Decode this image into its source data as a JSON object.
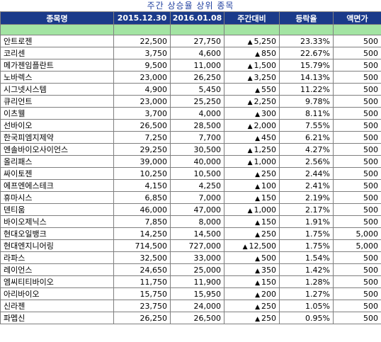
{
  "title": "주간 상승율 상위 종목",
  "headers": [
    "종목명",
    "2015.12.30",
    "2016.01.08",
    "주간대비",
    "등락율",
    "액면가"
  ],
  "up_icon": "triangle-up",
  "rows": [
    {
      "name": "안트로젠",
      "p1": "22,500",
      "p2": "27,750",
      "chg": "5,250",
      "rate": "23.33%",
      "par": "500"
    },
    {
      "name": "코리센",
      "p1": "3,750",
      "p2": "4,600",
      "chg": "850",
      "rate": "22.67%",
      "par": "500"
    },
    {
      "name": "메가젠임플란트",
      "p1": "9,500",
      "p2": "11,000",
      "chg": "1,500",
      "rate": "15.79%",
      "par": "500"
    },
    {
      "name": "노바렉스",
      "p1": "23,000",
      "p2": "26,250",
      "chg": "3,250",
      "rate": "14.13%",
      "par": "500"
    },
    {
      "name": "시그넷시스템",
      "p1": "4,900",
      "p2": "5,450",
      "chg": "550",
      "rate": "11.22%",
      "par": "500"
    },
    {
      "name": "큐리언트",
      "p1": "23,000",
      "p2": "25,250",
      "chg": "2,250",
      "rate": "9.78%",
      "par": "500"
    },
    {
      "name": "이츠웰",
      "p1": "3,700",
      "p2": "4,000",
      "chg": "300",
      "rate": "8.11%",
      "par": "500"
    },
    {
      "name": "선바이오",
      "p1": "26,500",
      "p2": "28,500",
      "chg": "2,000",
      "rate": "7.55%",
      "par": "500"
    },
    {
      "name": "한국피엠지제약",
      "p1": "7,250",
      "p2": "7,700",
      "chg": "450",
      "rate": "6.21%",
      "par": "500"
    },
    {
      "name": "엔솔바이오사이언스",
      "p1": "29,250",
      "p2": "30,500",
      "chg": "1,250",
      "rate": "4.27%",
      "par": "500"
    },
    {
      "name": "올리패스",
      "p1": "39,000",
      "p2": "40,000",
      "chg": "1,000",
      "rate": "2.56%",
      "par": "500"
    },
    {
      "name": "싸이토젠",
      "p1": "10,250",
      "p2": "10,500",
      "chg": "250",
      "rate": "2.44%",
      "par": "500"
    },
    {
      "name": "에프엔에스테크",
      "p1": "4,150",
      "p2": "4,250",
      "chg": "100",
      "rate": "2.41%",
      "par": "500"
    },
    {
      "name": "휴마시스",
      "p1": "6,850",
      "p2": "7,000",
      "chg": "150",
      "rate": "2.19%",
      "par": "500"
    },
    {
      "name": "덴티움",
      "p1": "46,000",
      "p2": "47,000",
      "chg": "1,000",
      "rate": "2.17%",
      "par": "500"
    },
    {
      "name": "바이오제닉스",
      "p1": "7,850",
      "p2": "8,000",
      "chg": "150",
      "rate": "1.91%",
      "par": "500"
    },
    {
      "name": "현대오일뱅크",
      "p1": "14,250",
      "p2": "14,500",
      "chg": "250",
      "rate": "1.75%",
      "par": "5,000"
    },
    {
      "name": "현대엔지니어링",
      "p1": "714,500",
      "p2": "727,000",
      "chg": "12,500",
      "rate": "1.75%",
      "par": "5,000"
    },
    {
      "name": "라파스",
      "p1": "32,500",
      "p2": "33,000",
      "chg": "500",
      "rate": "1.54%",
      "par": "500"
    },
    {
      "name": "레이언스",
      "p1": "24,650",
      "p2": "25,000",
      "chg": "350",
      "rate": "1.42%",
      "par": "500"
    },
    {
      "name": "엠씨티티바이오",
      "p1": "11,750",
      "p2": "11,900",
      "chg": "150",
      "rate": "1.28%",
      "par": "500"
    },
    {
      "name": "아리바이오",
      "p1": "15,750",
      "p2": "15,950",
      "chg": "200",
      "rate": "1.27%",
      "par": "500"
    },
    {
      "name": "신라젠",
      "p1": "23,750",
      "p2": "24,000",
      "chg": "250",
      "rate": "1.05%",
      "par": "500"
    },
    {
      "name": "파멥신",
      "p1": "26,250",
      "p2": "26,500",
      "chg": "250",
      "rate": "0.95%",
      "par": "500"
    }
  ]
}
